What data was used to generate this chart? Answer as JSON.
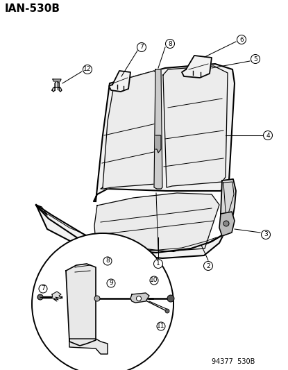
{
  "title": "IAN-530B",
  "footer": "94377  530B",
  "bg": "#ffffff",
  "lc": "#000000",
  "fill_seat": "#f2f2f2",
  "fill_dark": "#d8d8d8"
}
